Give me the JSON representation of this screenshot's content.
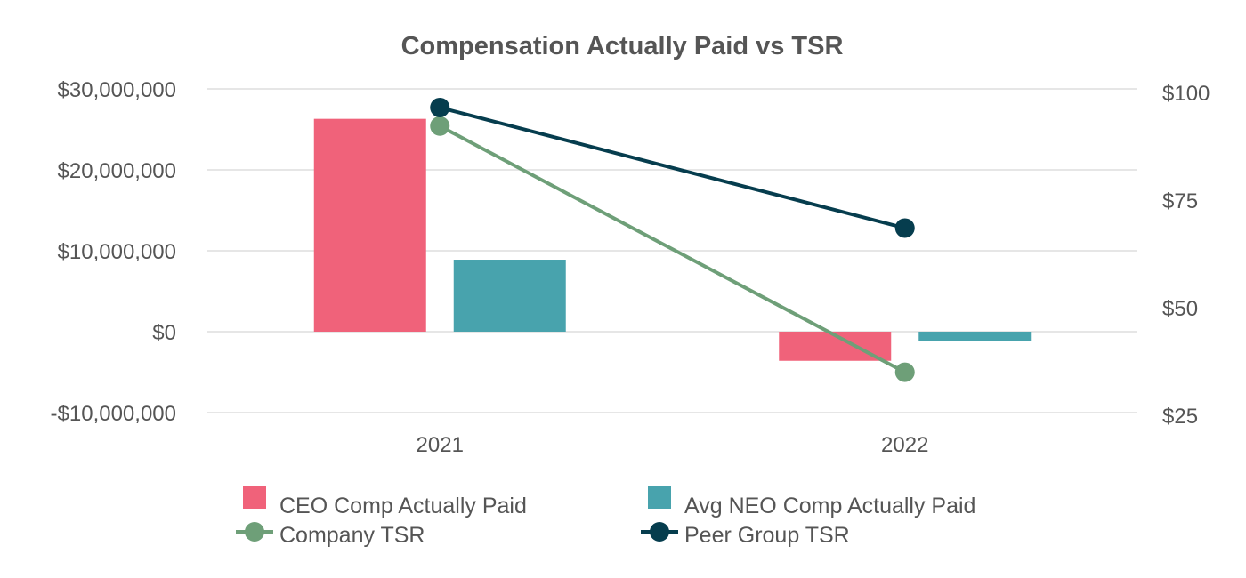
{
  "chart_data": {
    "type": "bar",
    "title": "Compensation Actually Paid vs TSR",
    "categories": [
      "2021",
      "2022"
    ],
    "y_left": {
      "ticks": [
        -10000000,
        0,
        10000000,
        20000000,
        30000000
      ],
      "tick_labels": [
        "-$10,000,000",
        "$0",
        "$10,000,000",
        "$20,000,000",
        "$30,000,000"
      ],
      "ylim": [
        -10000000,
        30000000
      ]
    },
    "y_right": {
      "ticks": [
        25,
        50,
        75,
        100
      ],
      "tick_labels": [
        "$25",
        "$50",
        "$75",
        "$100"
      ],
      "ylim": [
        25,
        100
      ]
    },
    "series": [
      {
        "name": "CEO Comp Actually Paid",
        "type": "bar",
        "axis": "left",
        "color": "#f0627a",
        "values": [
          26300000,
          -3600000
        ]
      },
      {
        "name": "Avg NEO Comp Actually Paid",
        "type": "bar",
        "axis": "left",
        "color": "#48a3ad",
        "values": [
          8900000,
          -1200000
        ]
      },
      {
        "name": "Company TSR",
        "type": "line",
        "axis": "right",
        "color": "#6e9f78",
        "values": [
          92.2,
          35.0
        ]
      },
      {
        "name": "Peer Group TSR",
        "type": "line",
        "axis": "right",
        "color": "#063d4e",
        "values": [
          96.5,
          68.5
        ]
      }
    ],
    "grid": true,
    "legend_position": "bottom"
  }
}
